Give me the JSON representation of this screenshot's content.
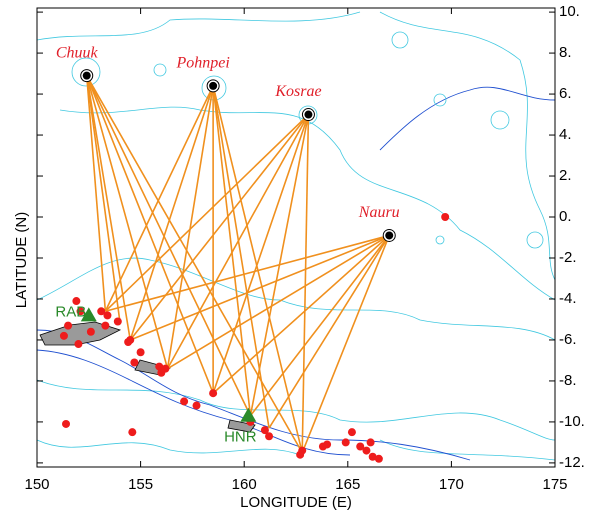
{
  "chart_data": {
    "type": "scatter",
    "xlabel": "LONGITUDE (E)",
    "ylabel": "LATITUDE (N)",
    "xlim": [
      150,
      175
    ],
    "ylim": [
      -12.2,
      10.2
    ],
    "xticks": [
      150,
      155,
      160,
      165,
      170,
      175
    ],
    "yticks": [
      {
        "value": 10,
        "label": "10."
      },
      {
        "value": 8,
        "label": "8."
      },
      {
        "value": 6,
        "label": "6."
      },
      {
        "value": 4,
        "label": "4."
      },
      {
        "value": 2,
        "label": "2."
      },
      {
        "value": 0,
        "label": "0."
      },
      {
        "value": -2,
        "label": "-2."
      },
      {
        "value": -4,
        "label": "-4."
      },
      {
        "value": -6,
        "label": "-6."
      },
      {
        "value": -8,
        "label": "-8."
      },
      {
        "value": -10,
        "label": "-10."
      },
      {
        "value": -12,
        "label": "-12."
      }
    ],
    "ray_color": "#f0901e",
    "stations": {
      "color": "#000000",
      "label_color": "#e0202a",
      "names": [
        "Chuuk",
        "Pohnpei",
        "Kosrae",
        "Nauru"
      ],
      "x": [
        152.4,
        158.5,
        163.1,
        167.0
      ],
      "y": [
        6.9,
        6.4,
        5.0,
        -0.9
      ],
      "rays": [
        {
          "x": [
            153.3,
            154.5,
            156.3,
            158.5,
            160.3,
            162.8,
            154.0
          ],
          "y": [
            -4.6,
            -6.0,
            -7.4,
            -8.6,
            -9.7,
            -11.5,
            -5.1
          ]
        },
        {
          "x": [
            153.3,
            154.5,
            156.3,
            158.5,
            160.3,
            162.8,
            161.2
          ],
          "y": [
            -4.6,
            -6.0,
            -7.4,
            -8.6,
            -9.7,
            -11.5,
            -10.3
          ]
        },
        {
          "x": [
            153.3,
            154.5,
            156.3,
            158.5,
            160.3,
            162.8
          ],
          "y": [
            -4.6,
            -6.0,
            -7.4,
            -8.6,
            -9.7,
            -11.5
          ]
        },
        {
          "x": [
            153.3,
            154.5,
            156.3,
            158.5,
            160.3,
            162.8,
            161.2
          ],
          "y": [
            -4.6,
            -6.0,
            -7.4,
            -8.6,
            -9.7,
            -11.5,
            -10.3
          ]
        }
      ]
    },
    "events": {
      "color": "#ee1c1c",
      "x": [
        169.7,
        151.9,
        152.1,
        151.5,
        151.3,
        152.0,
        152.6,
        153.1,
        153.4,
        153.3,
        153.9,
        154.5,
        154.4,
        155.0,
        154.7,
        155.9,
        156.2,
        156.0,
        157.1,
        157.7,
        158.5,
        160.3,
        161.0,
        161.2,
        162.8,
        162.7,
        163.8,
        164.0,
        165.2,
        165.6,
        165.9,
        166.2,
        166.1,
        166.5,
        151.4,
        154.6,
        164.9
      ],
      "y": [
        0.0,
        -4.1,
        -4.6,
        -5.3,
        -5.8,
        -6.2,
        -5.6,
        -4.6,
        -4.8,
        -5.3,
        -5.1,
        -6.0,
        -6.1,
        -6.6,
        -7.1,
        -7.3,
        -7.4,
        -7.6,
        -9.0,
        -9.2,
        -8.6,
        -10.0,
        -10.4,
        -10.7,
        -11.4,
        -11.6,
        -11.2,
        -11.1,
        -10.5,
        -11.2,
        -11.4,
        -11.7,
        -11.0,
        -11.8,
        -10.1,
        -10.5,
        -11.0
      ]
    },
    "seismometers": {
      "color": "#2a8a2a",
      "names": [
        "RAB",
        "HNR"
      ],
      "x": [
        152.5,
        160.2
      ],
      "y": [
        -4.8,
        -9.7
      ]
    }
  }
}
